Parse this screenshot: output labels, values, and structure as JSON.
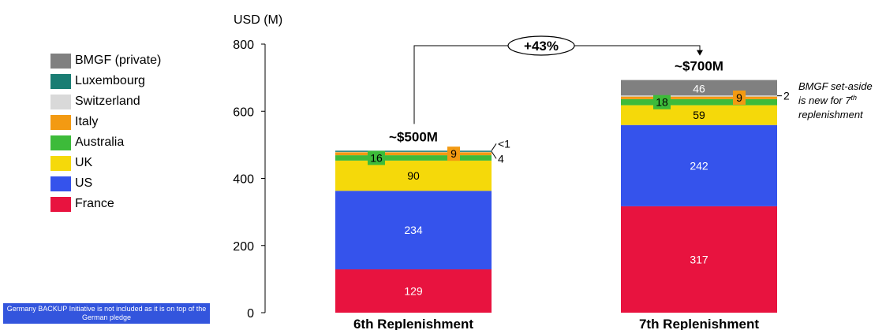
{
  "chart_data": {
    "type": "bar",
    "stacked": true,
    "ylabel": "USD (M)",
    "ylim": [
      0,
      800
    ],
    "yticks": [
      0,
      200,
      400,
      600,
      800
    ],
    "categories": [
      "6th Replenishment",
      "7th Replenishment"
    ],
    "series": [
      {
        "name": "France",
        "color": "#e8133f",
        "values": [
          129,
          317
        ],
        "labels": [
          "129",
          "317"
        ]
      },
      {
        "name": "US",
        "color": "#3553ec",
        "values": [
          234,
          242
        ],
        "labels": [
          "234",
          "242"
        ]
      },
      {
        "name": "UK",
        "color": "#f5d90a",
        "values": [
          90,
          59
        ],
        "labels": [
          "90",
          "59"
        ]
      },
      {
        "name": "Australia",
        "color": "#3dbb3a",
        "values": [
          16,
          18
        ],
        "labels": [
          "16",
          "18"
        ]
      },
      {
        "name": "Italy",
        "color": "#f39a12",
        "values": [
          9,
          9
        ],
        "labels": [
          "9",
          "9"
        ]
      },
      {
        "name": "Switzerland",
        "color": "#d9d9d9",
        "values": [
          4,
          2
        ],
        "labels": [
          "4",
          "2"
        ]
      },
      {
        "name": "Luxembourg",
        "color": "#1a7d73",
        "values": [
          0.5,
          0
        ],
        "labels": [
          "<1",
          ""
        ]
      },
      {
        "name": "BMGF (private)",
        "color": "#808080",
        "values": [
          0,
          46
        ],
        "labels": [
          "",
          "46"
        ]
      }
    ],
    "totals": [
      "~$500M",
      "~$700M"
    ],
    "growth_label": "+43%",
    "annotation_lines": [
      "BMGF set-aside",
      "is new for 7th",
      "replenishment"
    ],
    "legend_order": [
      "BMGF (private)",
      "Luxembourg",
      "Switzerland",
      "Italy",
      "Australia",
      "UK",
      "US",
      "France"
    ]
  },
  "legend": [
    {
      "label": "BMGF (private)",
      "color": "#808080"
    },
    {
      "label": "Luxembourg",
      "color": "#1a7d73"
    },
    {
      "label": "Switzerland",
      "color": "#d9d9d9"
    },
    {
      "label": "Italy",
      "color": "#f39a12"
    },
    {
      "label": "Australia",
      "color": "#3dbb3a"
    },
    {
      "label": "UK",
      "color": "#f5d90a"
    },
    {
      "label": "US",
      "color": "#3553ec"
    },
    {
      "label": "France",
      "color": "#e8133f"
    }
  ],
  "footnote": "Germany BACKUP Initiative is not included as it is on top of the German pledge"
}
